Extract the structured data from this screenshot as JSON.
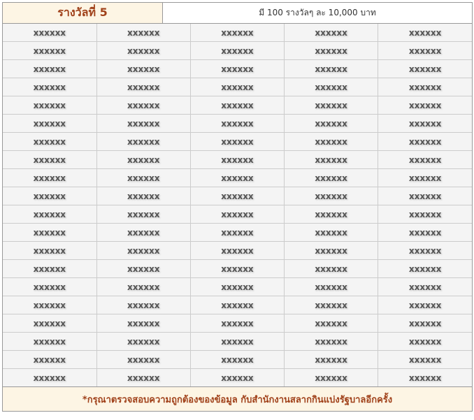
{
  "header": {
    "title": "รางวัลที่ 5",
    "description": "มี 100 รางวัลๆ ละ 10,000 บาท"
  },
  "rows": [
    [
      "xxxxxx",
      "xxxxxx",
      "xxxxxx",
      "xxxxxx",
      "xxxxxx"
    ],
    [
      "xxxxxx",
      "xxxxxx",
      "xxxxxx",
      "xxxxxx",
      "xxxxxx"
    ],
    [
      "xxxxxx",
      "xxxxxx",
      "xxxxxx",
      "xxxxxx",
      "xxxxxx"
    ],
    [
      "xxxxxx",
      "xxxxxx",
      "xxxxxx",
      "xxxxxx",
      "xxxxxx"
    ],
    [
      "xxxxxx",
      "xxxxxx",
      "xxxxxx",
      "xxxxxx",
      "xxxxxx"
    ],
    [
      "xxxxxx",
      "xxxxxx",
      "xxxxxx",
      "xxxxxx",
      "xxxxxx"
    ],
    [
      "xxxxxx",
      "xxxxxx",
      "xxxxxx",
      "xxxxxx",
      "xxxxxx"
    ],
    [
      "xxxxxx",
      "xxxxxx",
      "xxxxxx",
      "xxxxxx",
      "xxxxxx"
    ],
    [
      "xxxxxx",
      "xxxxxx",
      "xxxxxx",
      "xxxxxx",
      "xxxxxx"
    ],
    [
      "xxxxxx",
      "xxxxxx",
      "xxxxxx",
      "xxxxxx",
      "xxxxxx"
    ],
    [
      "xxxxxx",
      "xxxxxx",
      "xxxxxx",
      "xxxxxx",
      "xxxxxx"
    ],
    [
      "xxxxxx",
      "xxxxxx",
      "xxxxxx",
      "xxxxxx",
      "xxxxxx"
    ],
    [
      "xxxxxx",
      "xxxxxx",
      "xxxxxx",
      "xxxxxx",
      "xxxxxx"
    ],
    [
      "xxxxxx",
      "xxxxxx",
      "xxxxxx",
      "xxxxxx",
      "xxxxxx"
    ],
    [
      "xxxxxx",
      "xxxxxx",
      "xxxxxx",
      "xxxxxx",
      "xxxxxx"
    ],
    [
      "xxxxxx",
      "xxxxxx",
      "xxxxxx",
      "xxxxxx",
      "xxxxxx"
    ],
    [
      "xxxxxx",
      "xxxxxx",
      "xxxxxx",
      "xxxxxx",
      "xxxxxx"
    ],
    [
      "xxxxxx",
      "xxxxxx",
      "xxxxxx",
      "xxxxxx",
      "xxxxxx"
    ],
    [
      "xxxxxx",
      "xxxxxx",
      "xxxxxx",
      "xxxxxx",
      "xxxxxx"
    ],
    [
      "xxxxxx",
      "xxxxxx",
      "xxxxxx",
      "xxxxxx",
      "xxxxxx"
    ]
  ],
  "footer": {
    "note": "*กรุณาตรวจสอบความถูกต้องของข้อมูล กับสำนักงานสลากกินแบ่งรัฐบาลอีกครั้ง"
  },
  "colors": {
    "accent": "#a0411a",
    "header_bg": "#fdf5e4",
    "cell_bg": "#f4f4f4"
  }
}
